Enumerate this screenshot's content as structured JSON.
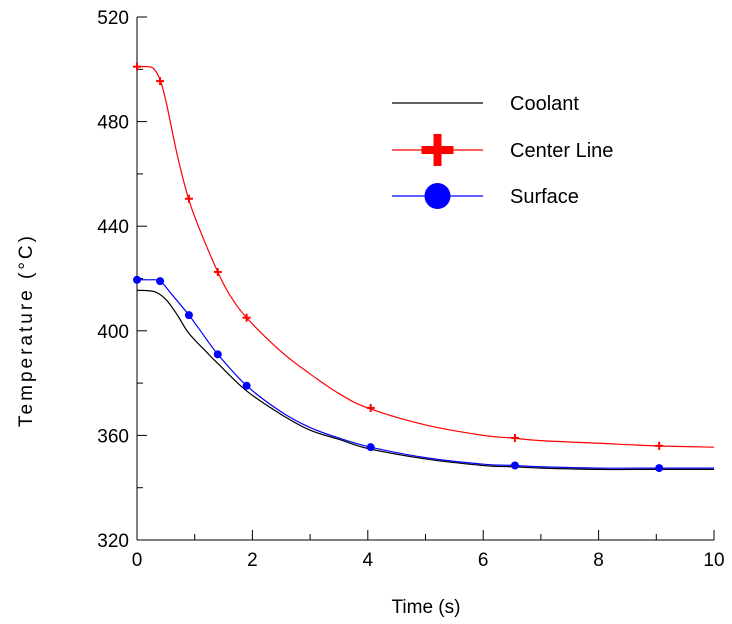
{
  "chart_data": {
    "type": "line",
    "title": "",
    "xlabel": "Time (s)",
    "ylabel": "Temperature (°C)",
    "xlim": [
      0,
      10
    ],
    "ylim": [
      320,
      520
    ],
    "x_ticks": [
      0,
      2,
      4,
      6,
      8,
      10
    ],
    "x_tick_labels": [
      "0",
      "2",
      "4",
      "6",
      "8",
      "10"
    ],
    "y_ticks": [
      320,
      360,
      400,
      440,
      480,
      520
    ],
    "y_tick_labels": [
      "320",
      "360",
      "400",
      "440",
      "480",
      "520"
    ],
    "grid": false,
    "legend_position": "top-right",
    "series": [
      {
        "name": "Coolant",
        "color": "#000000",
        "marker": "none",
        "x": [
          0,
          0.3,
          0.5,
          0.7,
          0.9,
          1.2,
          1.4,
          1.9,
          2.5,
          3.0,
          3.5,
          4.0,
          5.0,
          6.0,
          6.5,
          7.0,
          8.0,
          9.0,
          10.0
        ],
        "y": [
          415.5,
          415,
          412,
          406,
          399,
          392,
          387.5,
          377,
          368,
          362,
          358.5,
          355,
          351,
          348.5,
          348,
          347.5,
          347,
          347,
          347
        ]
      },
      {
        "name": "Center Line",
        "color": "#ff0000",
        "marker": "plus",
        "x": [
          0,
          0.2,
          0.3,
          0.4,
          0.5,
          0.7,
          0.9,
          1.1,
          1.4,
          1.6,
          1.9,
          2.5,
          3.0,
          3.5,
          4.0,
          5.0,
          6.0,
          6.5,
          7.0,
          8.0,
          9.0,
          10.0
        ],
        "y": [
          501,
          501,
          500,
          496,
          488,
          467,
          450,
          438,
          422.5,
          414,
          405,
          392,
          383.5,
          376,
          370.5,
          364,
          360,
          359,
          358,
          357,
          356,
          355.5
        ],
        "marker_x": [
          0,
          0.4,
          0.9,
          1.4,
          1.9,
          4.05,
          6.55,
          9.05
        ],
        "marker_y": [
          501,
          495.5,
          450.5,
          422.5,
          405,
          370.5,
          359,
          356
        ]
      },
      {
        "name": "Surface",
        "color": "#0000ff",
        "marker": "circle",
        "x": [
          0,
          0.2,
          0.4,
          0.6,
          0.9,
          1.1,
          1.4,
          1.9,
          2.5,
          3.0,
          3.5,
          4.05,
          5.0,
          6.0,
          6.55,
          7.0,
          8.0,
          9.05,
          10.0
        ],
        "y": [
          419.5,
          419.5,
          419,
          414,
          406,
          400,
          391,
          379,
          369,
          363,
          359,
          355.5,
          351.5,
          349,
          348.5,
          348,
          347.5,
          347.5,
          347.5
        ],
        "marker_x": [
          0,
          0.4,
          0.9,
          1.4,
          1.9,
          4.05,
          6.55,
          9.05
        ],
        "marker_y": [
          419.5,
          419,
          406,
          391,
          379,
          355.5,
          348.5,
          347.5
        ]
      }
    ]
  }
}
